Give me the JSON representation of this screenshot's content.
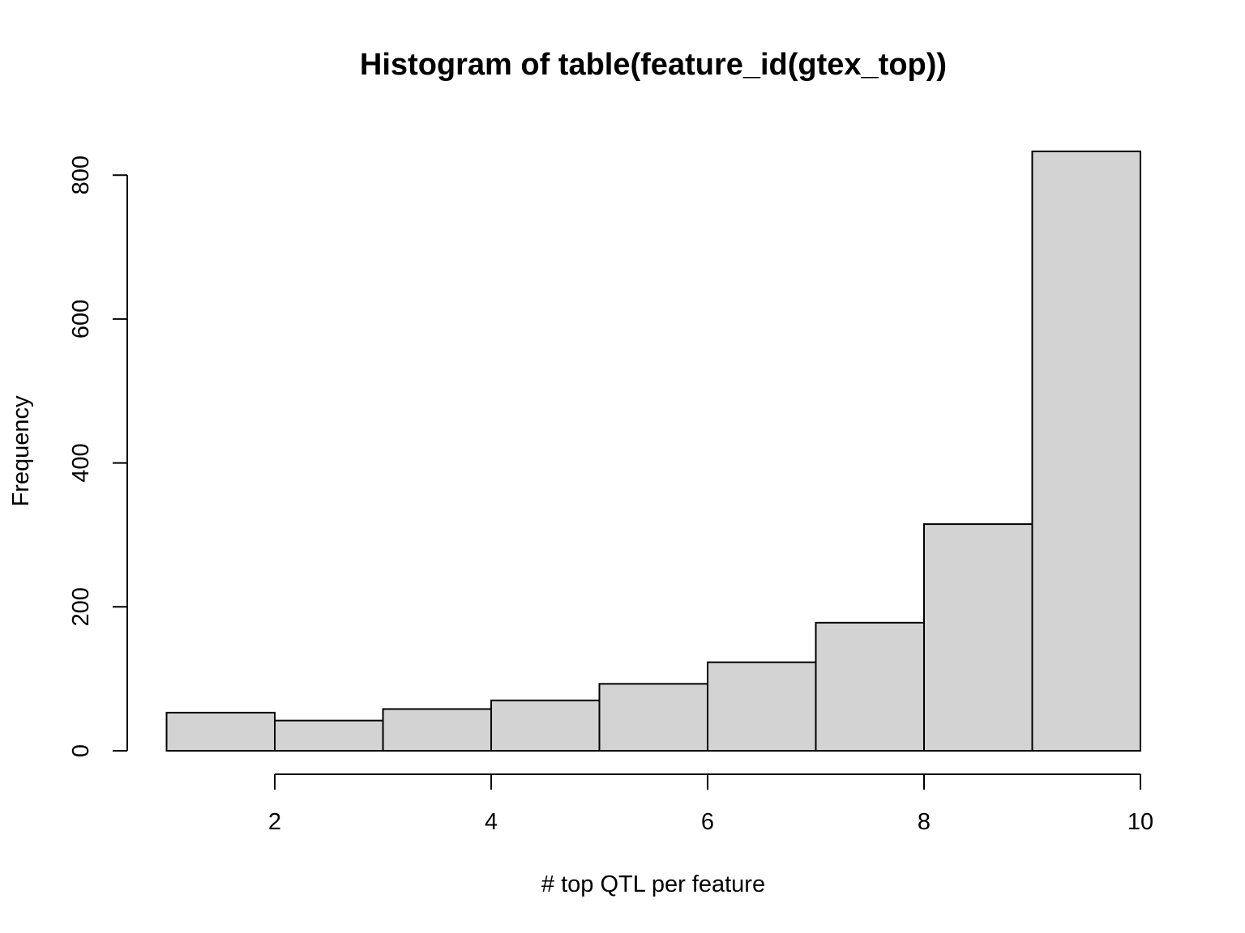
{
  "chart_data": {
    "type": "bar",
    "title": "Histogram of table(feature_id(gtex_top))",
    "xlabel": "# top QTL per feature",
    "ylabel": "Frequency",
    "bins": [
      {
        "from": 1,
        "to": 2,
        "value": 53
      },
      {
        "from": 2,
        "to": 3,
        "value": 42
      },
      {
        "from": 3,
        "to": 4,
        "value": 58
      },
      {
        "from": 4,
        "to": 5,
        "value": 70
      },
      {
        "from": 5,
        "to": 6,
        "value": 93
      },
      {
        "from": 6,
        "to": 7,
        "value": 123
      },
      {
        "from": 7,
        "to": 8,
        "value": 178
      },
      {
        "from": 8,
        "to": 9,
        "value": 315
      },
      {
        "from": 9,
        "to": 10,
        "value": 833
      }
    ],
    "x_ticks": [
      2,
      4,
      6,
      8,
      10
    ],
    "y_ticks": [
      0,
      200,
      400,
      600,
      800
    ],
    "xlim": [
      1,
      10
    ],
    "ylim": [
      0,
      800
    ],
    "bar_color": "#d3d3d3",
    "grid": false
  }
}
